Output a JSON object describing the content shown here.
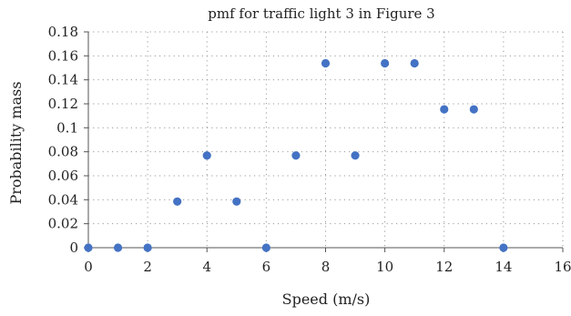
{
  "chart_data": {
    "type": "scatter",
    "title": "pmf for traffic light 3 in Figure 3",
    "xlabel": "Speed (m/s)",
    "ylabel": "Probability mass",
    "xlim": [
      0,
      16
    ],
    "ylim": [
      0,
      0.18
    ],
    "xticks": [
      0,
      2,
      4,
      6,
      8,
      10,
      12,
      14,
      16
    ],
    "yticks": [
      0,
      0.02,
      0.04,
      0.06,
      0.08,
      0.1,
      0.12,
      0.14,
      0.16,
      0.18
    ],
    "xtick_labels": [
      "0",
      "2",
      "4",
      "6",
      "8",
      "10",
      "12",
      "14",
      "16"
    ],
    "ytick_labels": [
      "0",
      "0.02",
      "0.04",
      "0.06",
      "0.08",
      "0.1",
      "0.12",
      "0.14",
      "0.16",
      "0.18"
    ],
    "grid": true,
    "x": [
      0,
      1,
      2,
      3,
      4,
      5,
      6,
      7,
      8,
      9,
      10,
      11,
      12,
      13,
      14
    ],
    "y": [
      0,
      0,
      0,
      0.0385,
      0.0769,
      0.0385,
      0,
      0.0769,
      0.1538,
      0.0769,
      0.1538,
      0.1538,
      0.1154,
      0.1154,
      0
    ],
    "marker_color": "#4472c4"
  }
}
